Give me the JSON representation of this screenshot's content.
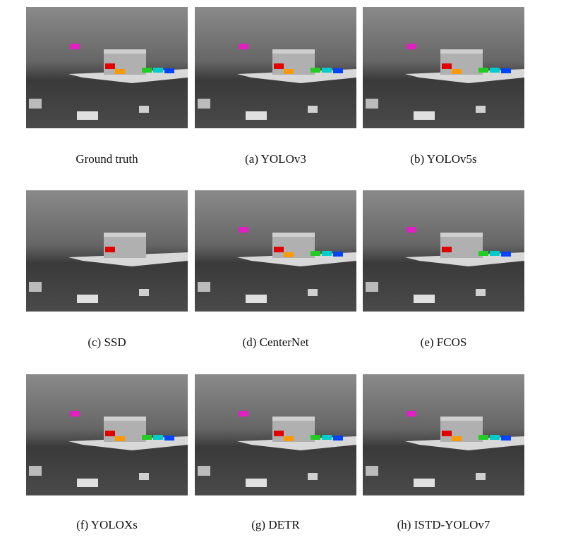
{
  "panels": [
    {
      "caption": "Ground truth"
    },
    {
      "caption": "(a) YOLOv3"
    },
    {
      "caption": "(b) YOLOv5s"
    },
    {
      "caption": "(c) SSD"
    },
    {
      "caption": "(d) CenterNet"
    },
    {
      "caption": "(e) FCOS"
    },
    {
      "caption": "(f) YOLOXs"
    },
    {
      "caption": "(g) DETR"
    },
    {
      "caption": "(h) ISTD-YOLOv7"
    }
  ]
}
